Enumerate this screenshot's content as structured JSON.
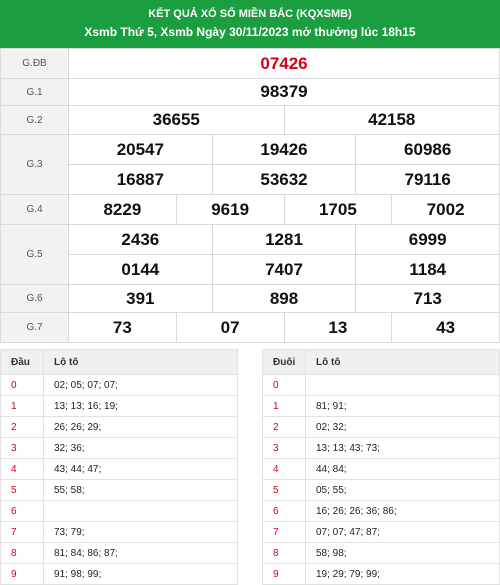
{
  "header": {
    "title": "KẾT QUẢ XỔ SỐ MIỀN BẮC (KQXSMB)",
    "subtitle": "Xsmb Thứ 5, Xsmb Ngày 30/11/2023 mở thưởng lúc 18h15"
  },
  "prizes": [
    {
      "label": "G.ĐB",
      "rows": [
        [
          "07426"
        ]
      ],
      "special": true
    },
    {
      "label": "G.1",
      "rows": [
        [
          "98379"
        ]
      ]
    },
    {
      "label": "G.2",
      "rows": [
        [
          "36655",
          "42158"
        ]
      ]
    },
    {
      "label": "G.3",
      "rows": [
        [
          "20547",
          "19426",
          "60986"
        ],
        [
          "16887",
          "53632",
          "79116"
        ]
      ]
    },
    {
      "label": "G.4",
      "rows": [
        [
          "8229",
          "9619",
          "1705",
          "7002"
        ]
      ]
    },
    {
      "label": "G.5",
      "rows": [
        [
          "2436",
          "1281",
          "6999"
        ],
        [
          "0144",
          "7407",
          "1184"
        ]
      ]
    },
    {
      "label": "G.6",
      "rows": [
        [
          "391",
          "898",
          "713"
        ]
      ]
    },
    {
      "label": "G.7",
      "rows": [
        [
          "73",
          "07",
          "13",
          "43"
        ]
      ]
    }
  ],
  "loto_head": {
    "col_key": "Đầu",
    "col_val": "Lô tô",
    "rows": [
      {
        "k": "0",
        "v": "02; 05; 07; 07;"
      },
      {
        "k": "1",
        "v": "13; 13; 16; 19;"
      },
      {
        "k": "2",
        "v": "26; 26; 29;"
      },
      {
        "k": "3",
        "v": "32; 36;"
      },
      {
        "k": "4",
        "v": "43; 44; 47;"
      },
      {
        "k": "5",
        "v": "55; 58;"
      },
      {
        "k": "6",
        "v": ""
      },
      {
        "k": "7",
        "v": "73; 79;"
      },
      {
        "k": "8",
        "v": "81; 84; 86; 87;"
      },
      {
        "k": "9",
        "v": "91; 98; 99;"
      }
    ]
  },
  "loto_tail": {
    "col_key": "Đuôi",
    "col_val": "Lô tô",
    "rows": [
      {
        "k": "0",
        "v": ""
      },
      {
        "k": "1",
        "v": "81; 91;"
      },
      {
        "k": "2",
        "v": "02; 32;"
      },
      {
        "k": "3",
        "v": "13; 13; 43; 73;"
      },
      {
        "k": "4",
        "v": "44; 84;"
      },
      {
        "k": "5",
        "v": "05; 55;"
      },
      {
        "k": "6",
        "v": "16; 26; 26; 36; 86;"
      },
      {
        "k": "7",
        "v": "07; 07; 47; 87;"
      },
      {
        "k": "8",
        "v": "58; 98;"
      },
      {
        "k": "9",
        "v": "19; 29; 79; 99;"
      }
    ]
  }
}
